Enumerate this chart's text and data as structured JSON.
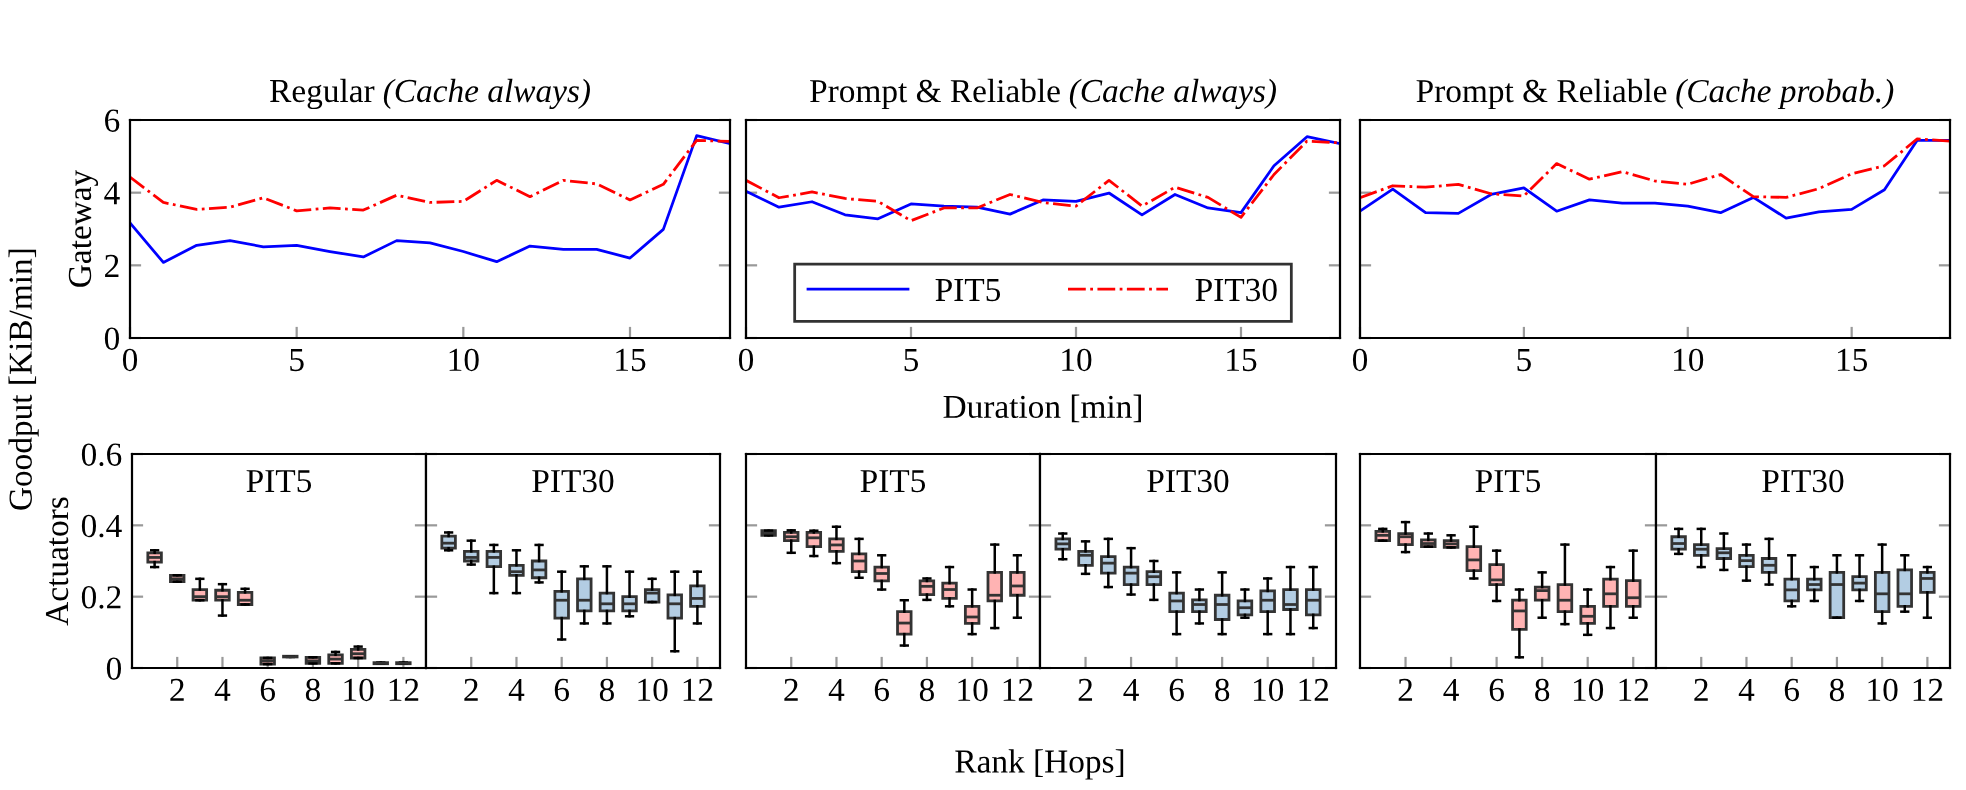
{
  "chart_data": [
    {
      "type": "line",
      "title": "Regular",
      "subtitle": "(Cache always)",
      "ylabel": "Gateway",
      "annotations": [
        "Goodput [KiB/min]"
      ],
      "xlim": [
        0,
        18
      ],
      "xticks": [
        0,
        5,
        10,
        15
      ],
      "ylim": [
        0,
        6
      ],
      "yticks": [
        0,
        2,
        4,
        6
      ],
      "x": [
        0,
        1,
        2,
        3,
        4,
        5,
        6,
        7,
        8,
        9,
        10,
        11,
        12,
        13,
        14,
        15,
        16,
        17,
        18
      ],
      "series": [
        {
          "color": "#0000ff",
          "line_style": "solid",
          "values": [
            3.17,
            2.08,
            2.55,
            2.68,
            2.51,
            2.55,
            2.38,
            2.23,
            2.68,
            2.62,
            2.38,
            2.1,
            2.53,
            2.44,
            2.44,
            2.2,
            2.99,
            5.57,
            5.35
          ]
        },
        {
          "color": "#ff0000",
          "line_style": "dashed",
          "values": [
            4.43,
            3.73,
            3.54,
            3.6,
            3.86,
            3.5,
            3.58,
            3.52,
            3.93,
            3.73,
            3.76,
            4.34,
            3.89,
            4.34,
            4.24,
            3.8,
            4.23,
            5.44,
            5.41
          ]
        }
      ]
    },
    {
      "type": "line",
      "title": "Prompt & Reliable",
      "subtitle": "(Cache always)",
      "xlabel": "Duration [min]",
      "legend": "bottom",
      "tick_labels": "x",
      "xlim": [
        0,
        18
      ],
      "xticks": [
        0,
        5,
        10,
        15
      ],
      "ylim": [
        0,
        6
      ],
      "yticks": [
        0,
        2,
        4,
        6
      ],
      "x": [
        0,
        1,
        2,
        3,
        4,
        5,
        6,
        7,
        8,
        9,
        10,
        11,
        12,
        13,
        14,
        15,
        16,
        17,
        18
      ],
      "series": [
        {
          "name": "PIT5",
          "color": "#0000ff",
          "line_style": "solid",
          "values": [
            4.04,
            3.6,
            3.75,
            3.39,
            3.28,
            3.69,
            3.63,
            3.6,
            3.41,
            3.8,
            3.76,
            3.99,
            3.39,
            3.95,
            3.58,
            3.45,
            4.74,
            5.54,
            5.35
          ]
        },
        {
          "name": "PIT30",
          "color": "#ff0000",
          "line_style": "dashed",
          "values": [
            4.34,
            3.86,
            4.02,
            3.84,
            3.76,
            3.23,
            3.58,
            3.58,
            3.95,
            3.73,
            3.63,
            4.34,
            3.63,
            4.15,
            3.87,
            3.32,
            4.5,
            5.42,
            5.37
          ]
        }
      ]
    },
    {
      "type": "line",
      "title": "Prompt & Reliable",
      "subtitle": "(Cache probab.)",
      "tick_labels": "x",
      "xlim": [
        0,
        18
      ],
      "xticks": [
        0,
        5,
        10,
        15
      ],
      "ylim": [
        0,
        6
      ],
      "yticks": [
        0,
        2,
        4,
        6
      ],
      "x": [
        0,
        1,
        2,
        3,
        4,
        5,
        6,
        7,
        8,
        9,
        10,
        11,
        12,
        13,
        14,
        15,
        16,
        17,
        18
      ],
      "series": [
        {
          "color": "#0000ff",
          "line_style": "solid",
          "values": [
            3.49,
            4.1,
            3.45,
            3.43,
            3.95,
            4.13,
            3.49,
            3.8,
            3.71,
            3.71,
            3.63,
            3.45,
            3.87,
            3.3,
            3.47,
            3.54,
            4.08,
            5.44,
            5.44
          ]
        },
        {
          "color": "#ff0000",
          "line_style": "dashed",
          "values": [
            3.86,
            4.19,
            4.15,
            4.23,
            3.97,
            3.91,
            4.8,
            4.37,
            4.58,
            4.32,
            4.23,
            4.5,
            3.89,
            3.87,
            4.11,
            4.52,
            4.74,
            5.48,
            5.42
          ]
        }
      ]
    },
    {
      "type": "box",
      "title": "PIT5",
      "ylabel": "Actuators",
      "ylim": [
        0,
        0.6
      ],
      "yticks": [
        0,
        0.2,
        0.4,
        0.6
      ],
      "categories": [
        null,
        "2",
        null,
        "4",
        null,
        "6",
        null,
        "8",
        null,
        "10",
        null,
        "12"
      ],
      "series": [
        {
          "color": "#ffb3b3",
          "boxes": [
            {
              "low": 0.283,
              "q1": 0.297,
              "median": 0.31,
              "q3": 0.323,
              "high": 0.33
            },
            {
              "low": 0.242,
              "q1": 0.242,
              "median": 0.25,
              "q3": 0.26,
              "high": 0.26
            },
            {
              "low": 0.19,
              "q1": 0.19,
              "median": 0.2,
              "q3": 0.22,
              "high": 0.25
            },
            {
              "low": 0.147,
              "q1": 0.19,
              "median": 0.2,
              "q3": 0.218,
              "high": 0.235
            },
            {
              "low": 0.178,
              "q1": 0.178,
              "median": 0.19,
              "q3": 0.212,
              "high": 0.222
            },
            {
              "low": 0.011,
              "q1": 0.011,
              "median": 0.02,
              "q3": 0.028,
              "high": 0.028
            },
            {
              "low": 0.031,
              "q1": 0.031,
              "median": 0.032,
              "q3": 0.033,
              "high": 0.033
            },
            {
              "low": 0.013,
              "q1": 0.013,
              "median": 0.02,
              "q3": 0.03,
              "high": 0.03
            },
            {
              "low": 0.013,
              "q1": 0.013,
              "median": 0.025,
              "q3": 0.037,
              "high": 0.045
            },
            {
              "low": 0.028,
              "q1": 0.028,
              "median": 0.04,
              "q3": 0.052,
              "high": 0.06
            },
            {
              "low": 0.012,
              "q1": 0.012,
              "median": 0.013,
              "q3": 0.015,
              "high": 0.015
            },
            {
              "low": 0.012,
              "q1": 0.012,
              "median": 0.013,
              "q3": 0.015,
              "high": 0.015
            }
          ]
        }
      ]
    },
    {
      "type": "box",
      "title": "PIT30",
      "tick_labels": "x",
      "ylim": [
        0,
        0.6
      ],
      "yticks": [
        0,
        0.2,
        0.4,
        0.6
      ],
      "categories": [
        null,
        "2",
        null,
        "4",
        null,
        "6",
        null,
        "8",
        null,
        "10",
        null,
        "12"
      ],
      "series": [
        {
          "color": "#b3cde3",
          "boxes": [
            {
              "low": 0.33,
              "q1": 0.336,
              "median": 0.35,
              "q3": 0.37,
              "high": 0.38
            },
            {
              "low": 0.29,
              "q1": 0.3,
              "median": 0.31,
              "q3": 0.327,
              "high": 0.357
            },
            {
              "low": 0.21,
              "q1": 0.284,
              "median": 0.31,
              "q3": 0.327,
              "high": 0.345
            },
            {
              "low": 0.21,
              "q1": 0.26,
              "median": 0.27,
              "q3": 0.288,
              "high": 0.33
            },
            {
              "low": 0.24,
              "q1": 0.253,
              "median": 0.275,
              "q3": 0.3,
              "high": 0.345
            },
            {
              "low": 0.08,
              "q1": 0.14,
              "median": 0.19,
              "q3": 0.215,
              "high": 0.27
            },
            {
              "low": 0.125,
              "q1": 0.16,
              "median": 0.19,
              "q3": 0.25,
              "high": 0.285
            },
            {
              "low": 0.125,
              "q1": 0.16,
              "median": 0.18,
              "q3": 0.21,
              "high": 0.285
            },
            {
              "low": 0.145,
              "q1": 0.16,
              "median": 0.18,
              "q3": 0.2,
              "high": 0.27
            },
            {
              "low": 0.185,
              "q1": 0.185,
              "median": 0.21,
              "q3": 0.22,
              "high": 0.25
            },
            {
              "low": 0.047,
              "q1": 0.14,
              "median": 0.18,
              "q3": 0.205,
              "high": 0.27
            },
            {
              "low": 0.125,
              "q1": 0.173,
              "median": 0.195,
              "q3": 0.23,
              "high": 0.27
            }
          ]
        }
      ]
    },
    {
      "type": "box",
      "title": "PIT5",
      "xlabel": "Rank [Hops]",
      "tick_labels": "x",
      "ylim": [
        0,
        0.6
      ],
      "yticks": [
        0,
        0.2,
        0.4,
        0.6
      ],
      "categories": [
        null,
        "2",
        null,
        "4",
        null,
        "6",
        null,
        "8",
        null,
        "10",
        null,
        "12"
      ],
      "series": [
        {
          "color": "#ffb3b3",
          "boxes": [
            {
              "low": 0.372,
              "q1": 0.372,
              "median": 0.378,
              "q3": 0.385,
              "high": 0.385
            },
            {
              "low": 0.323,
              "q1": 0.357,
              "median": 0.368,
              "q3": 0.38,
              "high": 0.386
            },
            {
              "low": 0.314,
              "q1": 0.34,
              "median": 0.365,
              "q3": 0.38,
              "high": 0.385
            },
            {
              "low": 0.294,
              "q1": 0.327,
              "median": 0.345,
              "q3": 0.362,
              "high": 0.396
            },
            {
              "low": 0.253,
              "q1": 0.27,
              "median": 0.3,
              "q3": 0.32,
              "high": 0.362
            },
            {
              "low": 0.22,
              "q1": 0.244,
              "median": 0.265,
              "q3": 0.283,
              "high": 0.316
            },
            {
              "low": 0.063,
              "q1": 0.095,
              "median": 0.126,
              "q3": 0.158,
              "high": 0.19
            },
            {
              "low": 0.191,
              "q1": 0.206,
              "median": 0.229,
              "q3": 0.244,
              "high": 0.251
            },
            {
              "low": 0.173,
              "q1": 0.195,
              "median": 0.22,
              "q3": 0.238,
              "high": 0.283
            },
            {
              "low": 0.095,
              "q1": 0.125,
              "median": 0.143,
              "q3": 0.173,
              "high": 0.22
            },
            {
              "low": 0.112,
              "q1": 0.188,
              "median": 0.204,
              "q3": 0.268,
              "high": 0.346
            },
            {
              "low": 0.141,
              "q1": 0.204,
              "median": 0.23,
              "q3": 0.268,
              "high": 0.316
            }
          ]
        }
      ]
    },
    {
      "type": "box",
      "title": "PIT30",
      "tick_labels": "x",
      "ylim": [
        0,
        0.6
      ],
      "yticks": [
        0,
        0.2,
        0.4,
        0.6
      ],
      "categories": [
        null,
        "2",
        null,
        "4",
        null,
        "6",
        null,
        "8",
        null,
        "10",
        null,
        "12"
      ],
      "series": [
        {
          "color": "#b3cde3",
          "boxes": [
            {
              "low": 0.305,
              "q1": 0.333,
              "median": 0.348,
              "q3": 0.362,
              "high": 0.377
            },
            {
              "low": 0.264,
              "q1": 0.288,
              "median": 0.316,
              "q3": 0.327,
              "high": 0.355
            },
            {
              "low": 0.227,
              "q1": 0.266,
              "median": 0.294,
              "q3": 0.312,
              "high": 0.362
            },
            {
              "low": 0.206,
              "q1": 0.234,
              "median": 0.266,
              "q3": 0.283,
              "high": 0.336
            },
            {
              "low": 0.191,
              "q1": 0.234,
              "median": 0.256,
              "q3": 0.27,
              "high": 0.3
            },
            {
              "low": 0.095,
              "q1": 0.158,
              "median": 0.188,
              "q3": 0.21,
              "high": 0.268
            },
            {
              "low": 0.125,
              "q1": 0.158,
              "median": 0.178,
              "q3": 0.191,
              "high": 0.22
            },
            {
              "low": 0.095,
              "q1": 0.136,
              "median": 0.178,
              "q3": 0.204,
              "high": 0.268
            },
            {
              "low": 0.141,
              "q1": 0.149,
              "median": 0.169,
              "q3": 0.188,
              "high": 0.22
            },
            {
              "low": 0.095,
              "q1": 0.158,
              "median": 0.19,
              "q3": 0.216,
              "high": 0.251
            },
            {
              "low": 0.095,
              "q1": 0.164,
              "median": 0.178,
              "q3": 0.22,
              "high": 0.283
            },
            {
              "low": 0.112,
              "q1": 0.149,
              "median": 0.19,
              "q3": 0.22,
              "high": 0.283
            }
          ]
        }
      ]
    },
    {
      "type": "box",
      "title": "PIT5",
      "tick_labels": "x",
      "ylim": [
        0,
        0.6
      ],
      "yticks": [
        0,
        0.2,
        0.4,
        0.6
      ],
      "categories": [
        null,
        "2",
        null,
        "4",
        null,
        "6",
        null,
        "8",
        null,
        "10",
        null,
        "12"
      ],
      "series": [
        {
          "color": "#ffb3b3",
          "boxes": [
            {
              "low": 0.357,
              "q1": 0.357,
              "median": 0.372,
              "q3": 0.383,
              "high": 0.39
            },
            {
              "low": 0.325,
              "q1": 0.346,
              "median": 0.368,
              "q3": 0.377,
              "high": 0.409
            },
            {
              "low": 0.34,
              "q1": 0.34,
              "median": 0.349,
              "q3": 0.359,
              "high": 0.377
            },
            {
              "low": 0.338,
              "q1": 0.338,
              "median": 0.348,
              "q3": 0.357,
              "high": 0.372
            },
            {
              "low": 0.251,
              "q1": 0.273,
              "median": 0.303,
              "q3": 0.34,
              "high": 0.396
            },
            {
              "low": 0.188,
              "q1": 0.234,
              "median": 0.247,
              "q3": 0.29,
              "high": 0.329
            },
            {
              "low": 0.03,
              "q1": 0.108,
              "median": 0.16,
              "q3": 0.19,
              "high": 0.22
            },
            {
              "low": 0.141,
              "q1": 0.19,
              "median": 0.217,
              "q3": 0.227,
              "high": 0.268
            },
            {
              "low": 0.123,
              "q1": 0.158,
              "median": 0.19,
              "q3": 0.234,
              "high": 0.346
            },
            {
              "low": 0.093,
              "q1": 0.125,
              "median": 0.145,
              "q3": 0.173,
              "high": 0.22
            },
            {
              "low": 0.112,
              "q1": 0.173,
              "median": 0.208,
              "q3": 0.249,
              "high": 0.283
            },
            {
              "low": 0.141,
              "q1": 0.173,
              "median": 0.197,
              "q3": 0.245,
              "high": 0.329
            }
          ]
        }
      ]
    },
    {
      "type": "box",
      "title": "PIT30",
      "tick_labels": "x",
      "ylim": [
        0,
        0.6
      ],
      "yticks": [
        0,
        0.2,
        0.4,
        0.6
      ],
      "categories": [
        null,
        "2",
        null,
        "4",
        null,
        "6",
        null,
        "8",
        null,
        "10",
        null,
        "12"
      ],
      "series": [
        {
          "color": "#b3cde3",
          "boxes": [
            {
              "low": 0.32,
              "q1": 0.333,
              "median": 0.349,
              "q3": 0.368,
              "high": 0.39
            },
            {
              "low": 0.283,
              "q1": 0.316,
              "median": 0.333,
              "q3": 0.346,
              "high": 0.39
            },
            {
              "low": 0.275,
              "q1": 0.307,
              "median": 0.323,
              "q3": 0.335,
              "high": 0.377
            },
            {
              "low": 0.245,
              "q1": 0.284,
              "median": 0.301,
              "q3": 0.316,
              "high": 0.346
            },
            {
              "low": 0.234,
              "q1": 0.268,
              "median": 0.288,
              "q3": 0.307,
              "high": 0.362
            },
            {
              "low": 0.173,
              "q1": 0.188,
              "median": 0.219,
              "q3": 0.249,
              "high": 0.316
            },
            {
              "low": 0.188,
              "q1": 0.219,
              "median": 0.234,
              "q3": 0.249,
              "high": 0.283
            },
            {
              "low": 0.141,
              "q1": 0.141,
              "median": 0.234,
              "q3": 0.268,
              "high": 0.316
            },
            {
              "low": 0.188,
              "q1": 0.219,
              "median": 0.238,
              "q3": 0.256,
              "high": 0.316
            },
            {
              "low": 0.125,
              "q1": 0.158,
              "median": 0.208,
              "q3": 0.268,
              "high": 0.346
            },
            {
              "low": 0.158,
              "q1": 0.173,
              "median": 0.208,
              "q3": 0.275,
              "high": 0.316
            },
            {
              "low": 0.141,
              "q1": 0.212,
              "median": 0.251,
              "q3": 0.268,
              "high": 0.283
            }
          ]
        }
      ]
    }
  ]
}
